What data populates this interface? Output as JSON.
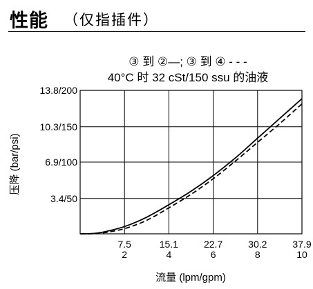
{
  "header": {
    "title": "性能",
    "subtitle": "（仅指插件）"
  },
  "chart_data": {
    "type": "line",
    "title_line1": "③ 到 ②—; ③ 到 ④ - - -",
    "title_line2": "40°C 时 32 cSt/150 ssu 的油液",
    "xlabel": "流量 (lpm/gpm)",
    "ylabel": "压降 (bar/psi)",
    "xlim": [
      0,
      10
    ],
    "ylim": [
      0,
      13.8
    ],
    "x_ticks": [
      {
        "value": 2,
        "label_top": "7.5",
        "label_bottom": "2"
      },
      {
        "value": 4,
        "label_top": "15.1",
        "label_bottom": "4"
      },
      {
        "value": 6,
        "label_top": "22.7",
        "label_bottom": "6"
      },
      {
        "value": 8,
        "label_top": "30.2",
        "label_bottom": "8"
      },
      {
        "value": 10,
        "label_top": "37.9",
        "label_bottom": "10"
      }
    ],
    "y_ticks": [
      {
        "value": 3.4,
        "label": "3.4/50"
      },
      {
        "value": 6.9,
        "label": "6.9/100"
      },
      {
        "value": 10.3,
        "label": "10.3/150"
      },
      {
        "value": 13.8,
        "label": "13.8/200"
      }
    ],
    "grid": true,
    "series": [
      {
        "name": "③ 到 ②",
        "style": "solid",
        "x": [
          0,
          0.5,
          1,
          2,
          3,
          4,
          5,
          6,
          7,
          8,
          9,
          10
        ],
        "y": [
          0,
          0.02,
          0.15,
          0.7,
          1.6,
          2.8,
          4.1,
          5.6,
          7.3,
          9.2,
          11.1,
          13.0
        ]
      },
      {
        "name": "③ 到 ④",
        "style": "dashed",
        "x": [
          0,
          0.5,
          1,
          2,
          3,
          4,
          5,
          6,
          7,
          8,
          9,
          10
        ],
        "y": [
          0,
          0.01,
          0.08,
          0.5,
          1.3,
          2.5,
          3.8,
          5.3,
          7.0,
          8.8,
          10.6,
          12.5
        ]
      }
    ]
  }
}
